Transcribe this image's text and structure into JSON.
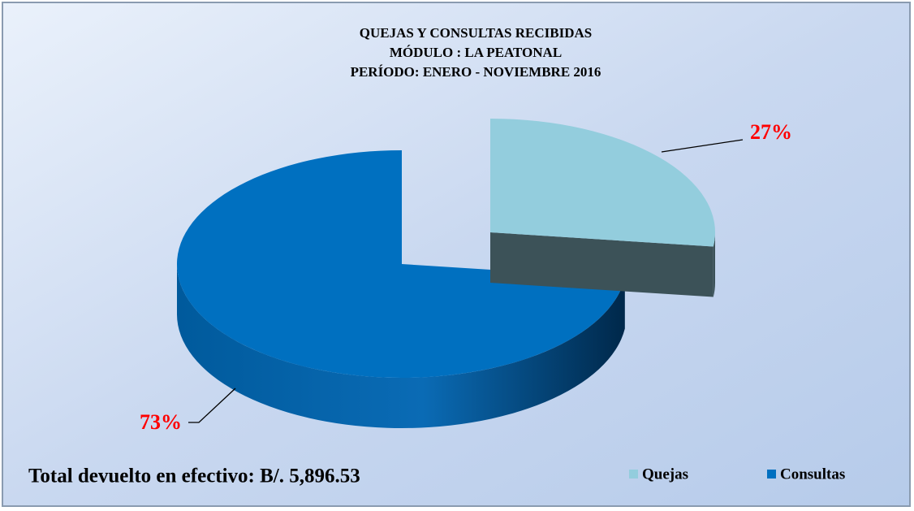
{
  "chart_data": {
    "type": "pie3d",
    "title": "QUEJAS Y CONSULTAS RECIBIDAS",
    "subtitle": [
      "MÓDULO : LA PEATONAL",
      "PERÍODO:  ENERO - NOVIEMBRE 2016"
    ],
    "annotation": "Total devuelto en efectivo: B/. 5,896.53",
    "categories": [
      "Quejas",
      "Consultas"
    ],
    "values": [
      27,
      73
    ],
    "value_labels": [
      "27%",
      "73%"
    ],
    "colors": [
      "#93cddd",
      "#0070c0"
    ],
    "legend": "bottom-right"
  }
}
